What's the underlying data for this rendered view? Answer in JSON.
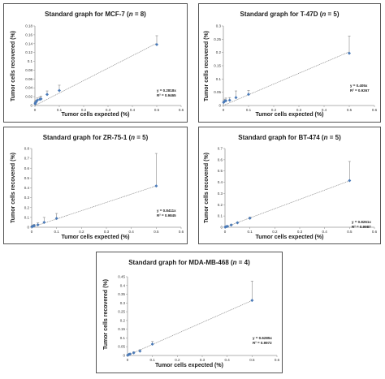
{
  "chart_data": [
    {
      "type": "scatter",
      "title_prefix": "Standard graph for MCF-7 (",
      "title_n": "n",
      "title_suffix": " = 8)",
      "xlabel": "Tumor cells expected (%)",
      "ylabel": "Tumor cells recovered (%)",
      "xlim": [
        0,
        0.6
      ],
      "ylim": [
        0,
        0.18
      ],
      "xticks": [
        "0",
        "0.1",
        "0.2",
        "0.3",
        "0.4",
        "0.5",
        "0.6"
      ],
      "yticks": [
        "0",
        "0.02",
        "0.04",
        "0.06",
        "0.08",
        "0.1",
        "0.12",
        "0.14",
        "0.16",
        "0.18"
      ],
      "equation": "y = 0.2818x",
      "r2": "R² = 0.9465",
      "slope": 0.2818,
      "points": [
        {
          "x": 0.001,
          "y": 0.004,
          "err": 0.004
        },
        {
          "x": 0.002,
          "y": 0.006,
          "err": 0.004
        },
        {
          "x": 0.005,
          "y": 0.008,
          "err": 0.004
        },
        {
          "x": 0.01,
          "y": 0.012,
          "err": 0.005
        },
        {
          "x": 0.02,
          "y": 0.014,
          "err": 0.005
        },
        {
          "x": 0.025,
          "y": 0.015,
          "err": 0.006
        },
        {
          "x": 0.05,
          "y": 0.025,
          "err": 0.008
        },
        {
          "x": 0.1,
          "y": 0.034,
          "err": 0.012
        },
        {
          "x": 0.5,
          "y": 0.138,
          "err": 0.02
        }
      ],
      "colors": {
        "marker": "#4a7ab8",
        "line": "#888888"
      }
    },
    {
      "type": "scatter",
      "title_prefix": "Standard graph for T-47D (",
      "title_n": "n",
      "title_suffix": " = 5)",
      "xlabel": "Tumor cells expected (%)",
      "ylabel": "Tumor cells recovered (%)",
      "xlim": [
        0,
        0.6
      ],
      "ylim": [
        0,
        0.3
      ],
      "xticks": [
        "0",
        "0.1",
        "0.2",
        "0.3",
        "0.4",
        "0.5",
        "0.6"
      ],
      "yticks": [
        "0",
        "0.05",
        "0.1",
        "0.15",
        "0.2",
        "0.25",
        "0.3"
      ],
      "equation": "y = 0.405x",
      "r2": "R² = 0.9267",
      "slope": 0.405,
      "points": [
        {
          "x": 0.001,
          "y": 0.012,
          "err": 0.006
        },
        {
          "x": 0.005,
          "y": 0.016,
          "err": 0.008
        },
        {
          "x": 0.01,
          "y": 0.018,
          "err": 0.01
        },
        {
          "x": 0.025,
          "y": 0.02,
          "err": 0.01
        },
        {
          "x": 0.05,
          "y": 0.03,
          "err": 0.025
        },
        {
          "x": 0.1,
          "y": 0.042,
          "err": 0.015
        },
        {
          "x": 0.5,
          "y": 0.197,
          "err": 0.065
        }
      ],
      "colors": {
        "marker": "#4a7ab8",
        "line": "#888888"
      }
    },
    {
      "type": "scatter",
      "title_prefix": "Standard graph for ZR-75-1 (",
      "title_n": "n",
      "title_suffix": " = 5)",
      "xlabel": "Tumor cells expected (%)",
      "ylabel": "Tumor cells recovered (%)",
      "xlim": [
        0,
        0.6
      ],
      "ylim": [
        0,
        0.8
      ],
      "xticks": [
        "0",
        "0.1",
        "0.2",
        "0.3",
        "0.4",
        "0.5",
        "0.6"
      ],
      "yticks": [
        "0",
        "0.1",
        "0.2",
        "0.3",
        "0.4",
        "0.5",
        "0.6",
        "0.7",
        "0.8"
      ],
      "equation": "y = 0.8411x",
      "r2": "R² = 0.9845",
      "slope": 0.8411,
      "points": [
        {
          "x": 0.001,
          "y": 0.005,
          "err": 0.01
        },
        {
          "x": 0.005,
          "y": 0.01,
          "err": 0.01
        },
        {
          "x": 0.01,
          "y": 0.015,
          "err": 0.015
        },
        {
          "x": 0.025,
          "y": 0.025,
          "err": 0.02
        },
        {
          "x": 0.05,
          "y": 0.05,
          "err": 0.05
        },
        {
          "x": 0.1,
          "y": 0.09,
          "err": 0.05
        },
        {
          "x": 0.5,
          "y": 0.42,
          "err": 0.33
        }
      ],
      "colors": {
        "marker": "#4a7ab8",
        "line": "#888888"
      }
    },
    {
      "type": "scatter",
      "title_prefix": "Standard graph for BT-474 (",
      "title_n": "n",
      "title_suffix": " = 5)",
      "xlabel": "Tumor cells expected (%)",
      "ylabel": "Tumor cells recovered (%)",
      "xlim": [
        0,
        0.6
      ],
      "ylim": [
        0,
        0.7
      ],
      "xticks": [
        "0",
        "0.1",
        "0.2",
        "0.3",
        "0.4",
        "0.5",
        "0.6"
      ],
      "yticks": [
        "0",
        "0.1",
        "0.2",
        "0.3",
        "0.4",
        "0.5",
        "0.6",
        "0.7"
      ],
      "equation": "y = 0.8261x",
      "r2": "R² = 0.9987",
      "slope": 0.8261,
      "points": [
        {
          "x": 0.001,
          "y": 0.002,
          "err": 0.003
        },
        {
          "x": 0.005,
          "y": 0.005,
          "err": 0.003
        },
        {
          "x": 0.01,
          "y": 0.008,
          "err": 0.004
        },
        {
          "x": 0.025,
          "y": 0.02,
          "err": 0.005
        },
        {
          "x": 0.05,
          "y": 0.04,
          "err": 0.005
        },
        {
          "x": 0.1,
          "y": 0.08,
          "err": 0.01
        },
        {
          "x": 0.5,
          "y": 0.415,
          "err": 0.17
        }
      ],
      "colors": {
        "marker": "#4a7ab8",
        "line": "#888888"
      }
    },
    {
      "type": "scatter",
      "title_prefix": "Standard graph for MDA-MB-468 (",
      "title_n": "n",
      "title_suffix": " = 4)",
      "xlabel": "Tumor cells expected (%)",
      "ylabel": "Tumor cells recovered (%)",
      "xlim": [
        0,
        0.6
      ],
      "ylim": [
        0,
        0.45
      ],
      "xticks": [
        "0",
        "0.1",
        "0.2",
        "0.3",
        "0.4",
        "0.5",
        "0.6"
      ],
      "yticks": [
        "0",
        "0.05",
        "0.1",
        "0.15",
        "0.2",
        "0.25",
        "0.3",
        "0.35",
        "0.4",
        "0.45"
      ],
      "equation": "y = 0.6285x",
      "r2": "R² = 0.9972",
      "slope": 0.6285,
      "points": [
        {
          "x": 0.001,
          "y": 0.002,
          "err": 0.003
        },
        {
          "x": 0.005,
          "y": 0.005,
          "err": 0.003
        },
        {
          "x": 0.01,
          "y": 0.008,
          "err": 0.004
        },
        {
          "x": 0.025,
          "y": 0.015,
          "err": 0.006
        },
        {
          "x": 0.05,
          "y": 0.025,
          "err": 0.008
        },
        {
          "x": 0.1,
          "y": 0.065,
          "err": 0.015
        },
        {
          "x": 0.5,
          "y": 0.315,
          "err": 0.11
        }
      ],
      "colors": {
        "marker": "#4a7ab8",
        "line": "#888888"
      }
    }
  ]
}
